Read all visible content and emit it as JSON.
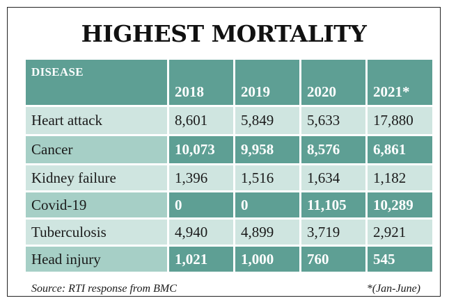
{
  "title": "HIGHEST MORTALITY",
  "table": {
    "label_header": "DISEASE",
    "years": [
      "2018",
      "2019",
      "2020",
      "2021*"
    ],
    "rows": [
      {
        "disease": "Heart attack",
        "values": [
          "8,601",
          "5,849",
          "5,633",
          "17,880"
        ]
      },
      {
        "disease": "Cancer",
        "values": [
          "10,073",
          "9,958",
          "8,576",
          "6,861"
        ]
      },
      {
        "disease": "Kidney failure",
        "values": [
          "1,396",
          "1,516",
          "1,634",
          "1,182"
        ]
      },
      {
        "disease": "Covid-19",
        "values": [
          "0",
          "0",
          "11,105",
          "10,289"
        ]
      },
      {
        "disease": "Tuberculosis",
        "values": [
          "4,940",
          "4,899",
          "3,719",
          "2,921"
        ]
      },
      {
        "disease": "Head injury",
        "values": [
          "1,021",
          "1,000",
          "760",
          "545"
        ]
      }
    ]
  },
  "source": "Source: RTI response from BMC",
  "footnote": "*(Jan-June)",
  "colors": {
    "dark": "#5e9f94",
    "medium": "#a6cfc6",
    "light": "#cfe5e0"
  }
}
